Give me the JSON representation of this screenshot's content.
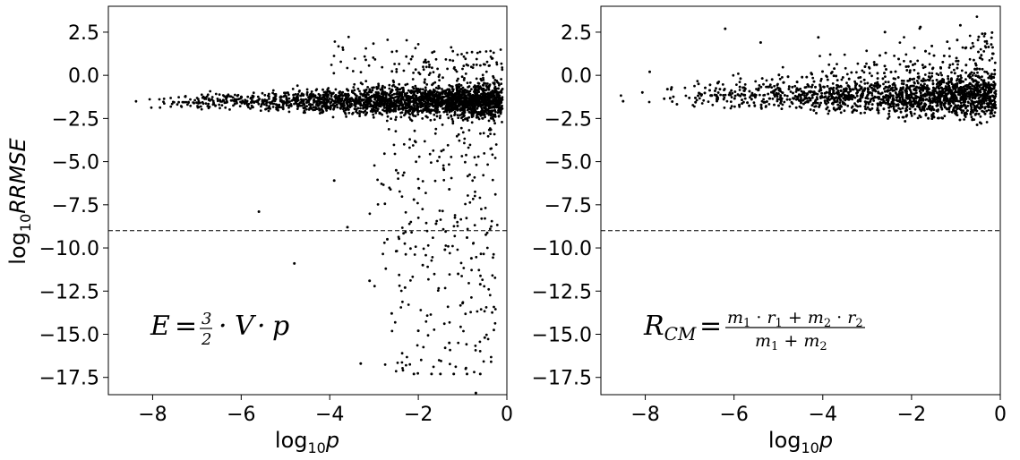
{
  "chart_data": [
    {
      "type": "scatter",
      "xlabel": "log",
      "xlabel_sub": "10",
      "xlabel_var": "p",
      "ylabel": "log",
      "ylabel_sub": "10",
      "ylabel_var": "RRMSE",
      "xlim": [
        -9,
        0
      ],
      "ylim": [
        -18.5,
        4.0
      ],
      "xticks": [
        -8,
        -6,
        -4,
        -2,
        0
      ],
      "xtick_labels": [
        "−8",
        "−6",
        "−4",
        "−2",
        "0"
      ],
      "yticks": [
        2.5,
        0.0,
        -2.5,
        -5.0,
        -7.5,
        -10.0,
        -12.5,
        -15.0,
        -17.5
      ],
      "ytick_labels": [
        "2.5",
        "0.0",
        "−2.5",
        "−5.0",
        "−7.5",
        "−10.0",
        "−12.5",
        "−15.0",
        "−17.5"
      ],
      "hline_y": -9,
      "annotation": "E = 3/2 · V · p",
      "point_color": "#000000",
      "cluster": {
        "x_range": [
          -8.7,
          -0.1
        ],
        "y_center": -1.5,
        "y_spread": 1.0
      },
      "outliers": [
        {
          "x": -5.6,
          "y": -7.9
        },
        {
          "x": -4.8,
          "y": -10.9
        },
        {
          "x": -3.3,
          "y": -16.7
        },
        {
          "x": -2.1,
          "y": -17.3
        },
        {
          "x": -1.7,
          "y": -17.3
        },
        {
          "x": -1.5,
          "y": -17.3
        },
        {
          "x": -1.2,
          "y": -17.3
        },
        {
          "x": -0.9,
          "y": -17.3
        },
        {
          "x": -0.6,
          "y": -17.3
        },
        {
          "x": -0.7,
          "y": -18.4
        },
        {
          "x": -2.0,
          "y": -14.8
        },
        {
          "x": -1.3,
          "y": -15.5
        },
        {
          "x": -0.5,
          "y": -15.2
        },
        {
          "x": -2.6,
          "y": -13.8
        },
        {
          "x": -1.0,
          "y": -13.2
        },
        {
          "x": -3.1,
          "y": -11.9
        },
        {
          "x": -2.3,
          "y": -12.3
        },
        {
          "x": -1.1,
          "y": -11.5
        },
        {
          "x": -0.8,
          "y": -10.6
        },
        {
          "x": -1.4,
          "y": -10.1
        },
        {
          "x": -2.7,
          "y": -9.5
        },
        {
          "x": -3.6,
          "y": -8.8
        },
        {
          "x": -2.1,
          "y": -7.2
        },
        {
          "x": -3.9,
          "y": -6.1
        },
        {
          "x": -1.3,
          "y": -6.6
        },
        {
          "x": -2.5,
          "y": -5.5
        },
        {
          "x": -1.6,
          "y": -8.6
        },
        {
          "x": -0.9,
          "y": -9.4
        },
        {
          "x": -1.9,
          "y": -11.0
        },
        {
          "x": -0.6,
          "y": -12.1
        }
      ]
    },
    {
      "type": "scatter",
      "xlabel": "log",
      "xlabel_sub": "10",
      "xlabel_var": "p",
      "xlim": [
        -9,
        0
      ],
      "ylim": [
        -18.5,
        4.0
      ],
      "xticks": [
        -8,
        -6,
        -4,
        -2,
        0
      ],
      "xtick_labels": [
        "−8",
        "−6",
        "−4",
        "−2",
        "0"
      ],
      "yticks": [
        2.5,
        0.0,
        -2.5,
        -5.0,
        -7.5,
        -10.0,
        -12.5,
        -15.0,
        -17.5
      ],
      "ytick_labels": [
        "2.5",
        "0.0",
        "−2.5",
        "−5.0",
        "−7.5",
        "−10.0",
        "−12.5",
        "−15.0",
        "−17.5"
      ],
      "hline_y": -9,
      "annotation": "R_CM = (m1 · r1 + m2 · r2)/(m1 + m2)",
      "point_color": "#000000",
      "cluster": {
        "x_range": [
          -8.7,
          -0.1
        ],
        "y_center": -1.2,
        "y_spread": 1.3
      },
      "outliers": [
        {
          "x": -6.2,
          "y": 2.7
        },
        {
          "x": -5.4,
          "y": 1.9
        },
        {
          "x": -4.1,
          "y": 2.2
        },
        {
          "x": -2.6,
          "y": 2.5
        },
        {
          "x": -1.8,
          "y": 2.8
        },
        {
          "x": -0.9,
          "y": 2.9
        },
        {
          "x": -7.9,
          "y": 0.2
        },
        {
          "x": -7.5,
          "y": -0.8
        },
        {
          "x": -6.8,
          "y": -0.5
        },
        {
          "x": -8.5,
          "y": -1.5
        }
      ]
    }
  ]
}
